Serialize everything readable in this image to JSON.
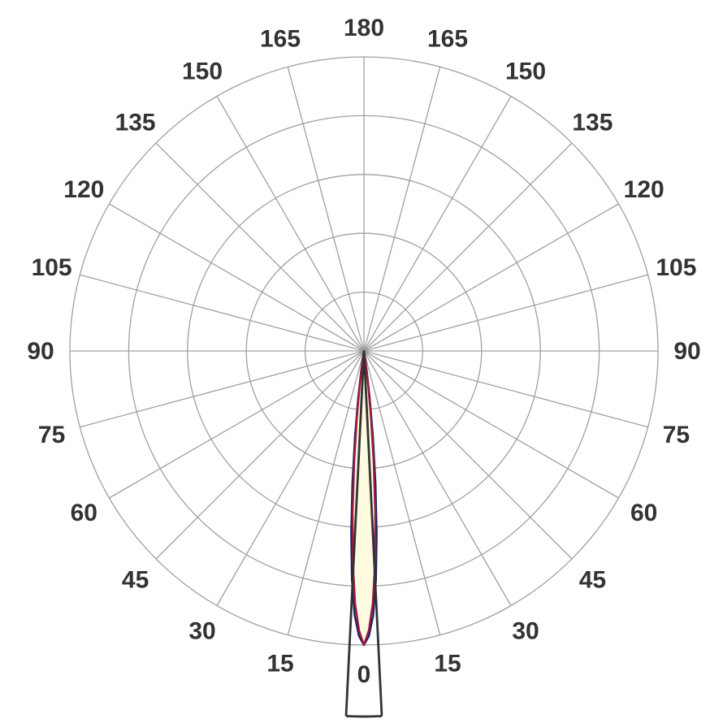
{
  "chart_data": {
    "type": "polar",
    "title": "",
    "angle_ticks": {
      "step_deg": 15,
      "left_labels": [
        "0",
        "15",
        "30",
        "45",
        "60",
        "75",
        "90",
        "105",
        "120",
        "135",
        "150",
        "165",
        "180"
      ],
      "right_labels": [
        "15",
        "30",
        "45",
        "60",
        "75",
        "90",
        "105",
        "120",
        "135",
        "150",
        "165"
      ]
    },
    "radial_rings": 5,
    "radial_range": [
      0,
      1
    ],
    "grid": true,
    "series": [
      {
        "color": "#1c1f6b",
        "fill": "#fffbe0",
        "r_max": 1.0,
        "angle_deg": [
          0,
          1,
          2,
          3,
          4,
          5,
          6,
          7,
          8,
          9,
          10
        ],
        "r": [
          1.0,
          0.97,
          0.9,
          0.78,
          0.62,
          0.45,
          0.29,
          0.16,
          0.07,
          0.02,
          0.0
        ]
      },
      {
        "color": "#9c1a3c",
        "r_max": 1.0,
        "angle_deg": [
          0,
          1,
          2,
          3,
          4,
          5,
          6,
          7,
          8,
          9,
          10
        ],
        "r": [
          1.0,
          0.95,
          0.86,
          0.72,
          0.55,
          0.38,
          0.23,
          0.12,
          0.05,
          0.01,
          0.0
        ]
      }
    ],
    "beam_marker": {
      "color": "#333333",
      "half_angle_deg": 2.8
    },
    "colors": {
      "grid": "#a0a0a0",
      "labels": "#333333",
      "beam_marker": "#333333"
    }
  }
}
